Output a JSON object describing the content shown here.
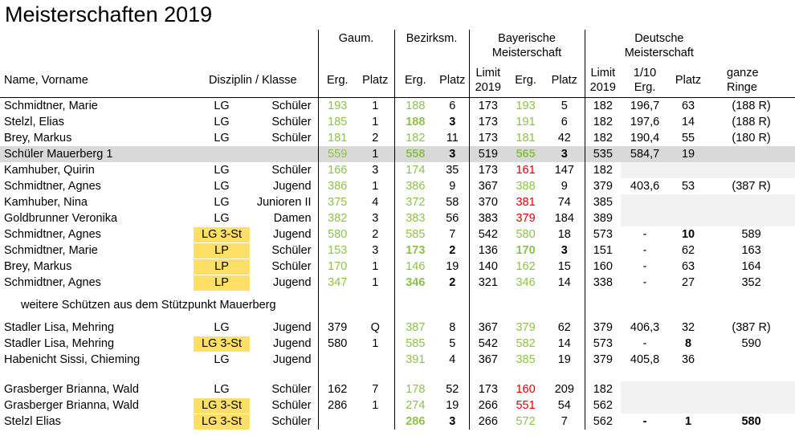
{
  "title": "Meisterschaften 2019",
  "headers": {
    "gaum": "Gaum.",
    "bezirk": "Bezirksm.",
    "bay_line1": "Bayerische",
    "bay_line2": "Meisterschaft",
    "dt_line1": "Deutsche",
    "dt_line2": "Meisterschaft",
    "name": "Name, Vorname",
    "disziplin": "Disziplin / Klasse",
    "erg": "Erg.",
    "platz": "Platz",
    "limit_line1": "Limit",
    "limit_line2": "2019",
    "zehntel_line1": "1/10",
    "zehntel_line2": "Erg.",
    "ganze_line1": "ganze",
    "ganze_line2": "Ringe"
  },
  "note": "weitere Schützen aus dem Stützpunkt Mauerberg",
  "colors": {
    "green": "#8bc34a",
    "red": "#e00000",
    "highlight": "#d9d9d9",
    "yellow": "#ffe066"
  },
  "rows": [
    {
      "name": "Schmidtner, Marie",
      "disz": "LG",
      "klasse": "Schüler",
      "g_erg": "193",
      "g_platz": "1",
      "b_erg": "188",
      "b_platz": "6",
      "bay_limit": "173",
      "bay_erg": "193",
      "bay_platz": "5",
      "dt_limit": "182",
      "dt_zehntel": "196,7",
      "dt_platz": "63",
      "dt_ganze": "(188 R)",
      "g_erg_c": "green",
      "b_erg_c": "green",
      "bay_erg_c": "green"
    },
    {
      "name": "Stelzl, Elias",
      "disz": "LG",
      "klasse": "Schüler",
      "g_erg": "185",
      "g_platz": "1",
      "b_erg": "188",
      "b_platz": "3",
      "bay_limit": "173",
      "bay_erg": "191",
      "bay_platz": "6",
      "dt_limit": "182",
      "dt_zehntel": "197,6",
      "dt_platz": "14",
      "dt_ganze": "(188 R)",
      "g_erg_c": "green",
      "b_erg_c": "green bold",
      "b_platz_c": "bold",
      "bay_erg_c": "green"
    },
    {
      "name": "Brey, Markus",
      "disz": "LG",
      "klasse": "Schüler",
      "g_erg": "181",
      "g_platz": "2",
      "b_erg": "182",
      "b_platz": "11",
      "bay_limit": "173",
      "bay_erg": "181",
      "bay_platz": "42",
      "dt_limit": "182",
      "dt_zehntel": "190,4",
      "dt_platz": "55",
      "dt_ganze": "(180 R)",
      "g_erg_c": "green",
      "b_erg_c": "green",
      "bay_erg_c": "green"
    },
    {
      "name": "Schüler Mauerberg 1",
      "disz": "",
      "klasse": "",
      "g_erg": "559",
      "g_platz": "1",
      "b_erg": "558",
      "b_platz": "3",
      "bay_limit": "519",
      "bay_erg": "565",
      "bay_platz": "3",
      "dt_limit": "535",
      "dt_zehntel": "584,7",
      "dt_platz": "19",
      "dt_ganze": "",
      "hl": true,
      "g_erg_c": "green",
      "b_erg_c": "green bold",
      "b_platz_c": "bold",
      "bay_erg_c": "green bold",
      "bay_platz_c": "bold"
    },
    {
      "name": "Kamhuber, Quirin",
      "disz": "LG",
      "klasse": "Schüler",
      "g_erg": "166",
      "g_platz": "3",
      "b_erg": "174",
      "b_platz": "35",
      "bay_limit": "173",
      "bay_erg": "161",
      "bay_platz": "147",
      "dt_limit": "182",
      "dt_zehntel": "",
      "dt_platz": "",
      "dt_ganze": "",
      "g_erg_c": "green",
      "b_erg_c": "green",
      "bay_erg_c": "red",
      "dt_gray": true
    },
    {
      "name": "Schmidtner, Agnes",
      "disz": "LG",
      "klasse": "Jugend",
      "g_erg": "386",
      "g_platz": "1",
      "b_erg": "386",
      "b_platz": "9",
      "bay_limit": "367",
      "bay_erg": "388",
      "bay_platz": "9",
      "dt_limit": "379",
      "dt_zehntel": "403,6",
      "dt_platz": "53",
      "dt_ganze": "(387 R)",
      "g_erg_c": "green",
      "b_erg_c": "green",
      "bay_erg_c": "green"
    },
    {
      "name": "Kamhuber, Nina",
      "disz": "LG",
      "klasse": "Junioren II",
      "g_erg": "375",
      "g_platz": "4",
      "b_erg": "372",
      "b_platz": "58",
      "bay_limit": "370",
      "bay_erg": "381",
      "bay_platz": "74",
      "dt_limit": "385",
      "dt_zehntel": "",
      "dt_platz": "",
      "dt_ganze": "",
      "g_erg_c": "green",
      "b_erg_c": "green",
      "bay_erg_c": "red",
      "dt_gray": true
    },
    {
      "name": "Goldbrunner Veronika",
      "disz": "LG",
      "klasse": "Damen",
      "g_erg": "382",
      "g_platz": "3",
      "b_erg": "383",
      "b_platz": "56",
      "bay_limit": "383",
      "bay_erg": "379",
      "bay_platz": "184",
      "dt_limit": "389",
      "dt_zehntel": "",
      "dt_platz": "",
      "dt_ganze": "",
      "g_erg_c": "green",
      "b_erg_c": "green",
      "bay_erg_c": "red",
      "dt_gray": true
    },
    {
      "name": "Schmidtner, Agnes",
      "disz": "LG 3-St",
      "klasse": "Jugend",
      "g_erg": "580",
      "g_platz": "2",
      "b_erg": "585",
      "b_platz": "7",
      "bay_limit": "542",
      "bay_erg": "580",
      "bay_platz": "18",
      "dt_limit": "573",
      "dt_zehntel": "-",
      "dt_platz": "10",
      "dt_ganze": "589",
      "yel": true,
      "g_erg_c": "green",
      "b_erg_c": "green",
      "bay_erg_c": "green",
      "dt_platz_c": "bold"
    },
    {
      "name": "Schmidtner, Marie",
      "disz": "LP",
      "klasse": "Schüler",
      "g_erg": "153",
      "g_platz": "3",
      "b_erg": "173",
      "b_platz": "2",
      "bay_limit": "136",
      "bay_erg": "170",
      "bay_platz": "3",
      "dt_limit": "151",
      "dt_zehntel": "-",
      "dt_platz": "62",
      "dt_ganze": "163",
      "yel": true,
      "g_erg_c": "green",
      "b_erg_c": "green bold",
      "b_platz_c": "bold",
      "bay_erg_c": "green bold",
      "bay_platz_c": "bold"
    },
    {
      "name": "Brey, Markus",
      "disz": "LP",
      "klasse": "Schüler",
      "g_erg": "170",
      "g_platz": "1",
      "b_erg": "146",
      "b_platz": "19",
      "bay_limit": "140",
      "bay_erg": "162",
      "bay_platz": "15",
      "dt_limit": "160",
      "dt_zehntel": "-",
      "dt_platz": "63",
      "dt_ganze": "164",
      "yel": true,
      "g_erg_c": "green",
      "b_erg_c": "green",
      "bay_erg_c": "green"
    },
    {
      "name": "Schmidtner, Agnes",
      "disz": "LP",
      "klasse": "Jugend",
      "g_erg": "347",
      "g_platz": "1",
      "b_erg": "346",
      "b_platz": "2",
      "bay_limit": "321",
      "bay_erg": "346",
      "bay_platz": "14",
      "dt_limit": "338",
      "dt_zehntel": "-",
      "dt_platz": "27",
      "dt_ganze": "352",
      "yel": true,
      "g_erg_c": "green",
      "b_erg_c": "green bold",
      "b_platz_c": "bold",
      "bay_erg_c": "green"
    },
    {
      "name": "Stadler Lisa, Mehring",
      "disz": "LG",
      "klasse": "Jugend",
      "g_erg": "379",
      "g_platz": "Q",
      "b_erg": "387",
      "b_platz": "8",
      "bay_limit": "367",
      "bay_erg": "379",
      "bay_platz": "62",
      "dt_limit": "379",
      "dt_zehntel": "406,3",
      "dt_platz": "32",
      "dt_ganze": "(387 R)",
      "b_erg_c": "green",
      "bay_erg_c": "green",
      "note_before": true
    },
    {
      "name": "Stadler Lisa, Mehring",
      "disz": "LG 3-St",
      "klasse": "Jugend",
      "g_erg": "580",
      "g_platz": "1",
      "b_erg": "585",
      "b_platz": "5",
      "bay_limit": "542",
      "bay_erg": "582",
      "bay_platz": "14",
      "dt_limit": "573",
      "dt_zehntel": "-",
      "dt_platz": "8",
      "dt_ganze": "590",
      "yel": true,
      "b_erg_c": "green",
      "bay_erg_c": "green",
      "dt_platz_c": "bold"
    },
    {
      "name": "Habenicht Sissi, Chieming",
      "disz": "LG",
      "klasse": "Jugend",
      "g_erg": "",
      "g_platz": "",
      "b_erg": "391",
      "b_platz": "4",
      "bay_limit": "367",
      "bay_erg": "385",
      "bay_platz": "19",
      "dt_limit": "379",
      "dt_zehntel": "405,8",
      "dt_platz": "36",
      "dt_ganze": "",
      "b_erg_c": "green",
      "bay_erg_c": "green"
    },
    {
      "name": "Grasberger Brianna, Wald",
      "disz": "LG",
      "klasse": "Schüler",
      "g_erg": "162",
      "g_platz": "7",
      "b_erg": "178",
      "b_platz": "52",
      "bay_limit": "173",
      "bay_erg": "160",
      "bay_platz": "209",
      "dt_limit": "182",
      "dt_zehntel": "",
      "dt_platz": "",
      "dt_ganze": "",
      "b_erg_c": "green",
      "bay_erg_c": "red",
      "dt_gray": true,
      "gap_before": true
    },
    {
      "name": "Grasberger Brianna, Wald",
      "disz": "LG 3-St",
      "klasse": "Schüler",
      "g_erg": "286",
      "g_platz": "1",
      "b_erg": "274",
      "b_platz": "19",
      "bay_limit": "266",
      "bay_erg": "551",
      "bay_platz": "54",
      "dt_limit": "562",
      "dt_zehntel": "",
      "dt_platz": "",
      "dt_ganze": "",
      "yel": true,
      "b_erg_c": "green",
      "bay_erg_c": "red",
      "dt_gray": true
    },
    {
      "name": "Stelzl Elias",
      "disz": "LG 3-St",
      "klasse": "Schüler",
      "g_erg": "",
      "g_platz": "",
      "b_erg": "286",
      "b_platz": "3",
      "bay_limit": "266",
      "bay_erg": "572",
      "bay_platz": "7",
      "dt_limit": "562",
      "dt_zehntel": "-",
      "dt_platz": "1",
      "dt_ganze": "580",
      "yel": true,
      "b_erg_c": "green bold",
      "b_platz_c": "bold",
      "bay_erg_c": "green",
      "dt_zehntel_c": "bold",
      "dt_platz_c": "bold",
      "dt_ganze_c": "bold"
    }
  ]
}
